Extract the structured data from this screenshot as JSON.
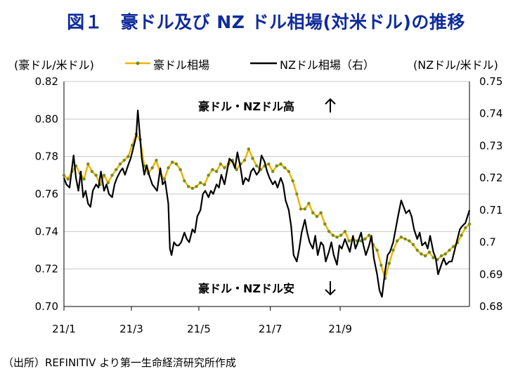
{
  "title": "図１　豪ドル及び NZ ドル相場(対米ドル)の推移",
  "left_unit": "(豪ドル/米ドル)",
  "right_unit": "(NZドル/米ドル)",
  "legend": {
    "aud": "豪ドル相場",
    "nzd": "NZドル相場（右）"
  },
  "source": "（出所）REFINITIV より第一生命経済研究所作成",
  "annotations": {
    "high": "豪ドル・NZドル高",
    "low": "豪ドル・NZドル安"
  },
  "colors": {
    "aud": "#f2b400",
    "aud_marker": "#6b8e23",
    "nzd": "#000000",
    "grid": "#c8c8c8",
    "title": "#0f2b9c"
  },
  "chart_data": {
    "type": "line",
    "x_tick_labels": [
      "21/1",
      "21/3",
      "21/5",
      "21/7",
      "21/9"
    ],
    "x_tick_weeks": [
      0,
      8.4,
      16.8,
      25.7,
      34.4
    ],
    "left_axis": {
      "ylim": [
        0.7,
        0.82
      ],
      "ticks": [
        "0.70",
        "0.72",
        "0.74",
        "0.76",
        "0.78",
        "0.80",
        "0.82"
      ]
    },
    "right_axis": {
      "ylim": [
        0.68,
        0.75
      ],
      "ticks": [
        "0.68",
        "0.69",
        "0.7",
        "0.71",
        "0.72",
        "0.73",
        "0.74",
        "0.75"
      ]
    },
    "grid": "horizontal",
    "series": [
      {
        "name": "豪ドル相場",
        "axis": "left",
        "markers": true,
        "points": [
          [
            0,
            0.77
          ],
          [
            0.5,
            0.768
          ],
          [
            1,
            0.772
          ],
          [
            1.5,
            0.775
          ],
          [
            2,
            0.771
          ],
          [
            2.5,
            0.768
          ],
          [
            3,
            0.776
          ],
          [
            3.5,
            0.772
          ],
          [
            4,
            0.77
          ],
          [
            4.5,
            0.765
          ],
          [
            5,
            0.77
          ],
          [
            5.5,
            0.766
          ],
          [
            6,
            0.77
          ],
          [
            6.5,
            0.773
          ],
          [
            7,
            0.776
          ],
          [
            7.5,
            0.778
          ],
          [
            8,
            0.78
          ],
          [
            8.5,
            0.786
          ],
          [
            9,
            0.792
          ],
          [
            9.5,
            0.789
          ],
          [
            10,
            0.775
          ],
          [
            10.5,
            0.771
          ],
          [
            11,
            0.774
          ],
          [
            11.5,
            0.778
          ],
          [
            12,
            0.771
          ],
          [
            12.5,
            0.768
          ],
          [
            13,
            0.774
          ],
          [
            13.5,
            0.777
          ],
          [
            14,
            0.776
          ],
          [
            14.5,
            0.773
          ],
          [
            15,
            0.767
          ],
          [
            15.5,
            0.764
          ],
          [
            16,
            0.763
          ],
          [
            16.5,
            0.764
          ],
          [
            17,
            0.766
          ],
          [
            17.5,
            0.765
          ],
          [
            18,
            0.77
          ],
          [
            18.5,
            0.773
          ],
          [
            19,
            0.772
          ],
          [
            19.5,
            0.776
          ],
          [
            20,
            0.774
          ],
          [
            20.5,
            0.776
          ],
          [
            21,
            0.778
          ],
          [
            21.5,
            0.773
          ],
          [
            22,
            0.776
          ],
          [
            22.5,
            0.778
          ],
          [
            23,
            0.784
          ],
          [
            23.5,
            0.779
          ],
          [
            24,
            0.775
          ],
          [
            24.5,
            0.773
          ],
          [
            25,
            0.775
          ],
          [
            25.5,
            0.776
          ],
          [
            26,
            0.772
          ],
          [
            26.5,
            0.775
          ],
          [
            27,
            0.776
          ],
          [
            27.5,
            0.774
          ],
          [
            28,
            0.772
          ],
          [
            28.5,
            0.767
          ],
          [
            29,
            0.76
          ],
          [
            29.5,
            0.752
          ],
          [
            30,
            0.752
          ],
          [
            30.5,
            0.755
          ],
          [
            31,
            0.75
          ],
          [
            31.5,
            0.748
          ],
          [
            32,
            0.75
          ],
          [
            32.5,
            0.744
          ],
          [
            33,
            0.74
          ],
          [
            33.5,
            0.738
          ],
          [
            34,
            0.737
          ],
          [
            34.5,
            0.738
          ],
          [
            35,
            0.74
          ],
          [
            35.5,
            0.735
          ],
          [
            36,
            0.736
          ],
          [
            36.5,
            0.735
          ],
          [
            37,
            0.735
          ],
          [
            37.5,
            0.736
          ],
          [
            38,
            0.738
          ],
          [
            38.5,
            0.733
          ],
          [
            39,
            0.73
          ],
          [
            39.5,
            0.722
          ],
          [
            40,
            0.715
          ],
          [
            40.5,
            0.723
          ],
          [
            41,
            0.73
          ],
          [
            41.5,
            0.735
          ],
          [
            42,
            0.737
          ],
          [
            42.5,
            0.736
          ],
          [
            43,
            0.735
          ],
          [
            43.5,
            0.733
          ],
          [
            44,
            0.73
          ],
          [
            44.5,
            0.728
          ],
          [
            45,
            0.727
          ],
          [
            45.5,
            0.729
          ],
          [
            46,
            0.726
          ],
          [
            46.5,
            0.725
          ],
          [
            47,
            0.727
          ],
          [
            47.5,
            0.728
          ],
          [
            48,
            0.73
          ],
          [
            48.5,
            0.732
          ],
          [
            49,
            0.734
          ],
          [
            49.5,
            0.738
          ],
          [
            50,
            0.742
          ],
          [
            50.5,
            0.744
          ]
        ]
      },
      {
        "name": "NZドル相場（右）",
        "axis": "right",
        "markers": false,
        "points": [
          [
            0,
            0.72
          ],
          [
            0.3,
            0.718
          ],
          [
            0.7,
            0.717
          ],
          [
            1,
            0.723
          ],
          [
            1.2,
            0.727
          ],
          [
            1.5,
            0.72
          ],
          [
            1.8,
            0.716
          ],
          [
            2.1,
            0.722
          ],
          [
            2.4,
            0.714
          ],
          [
            2.7,
            0.716
          ],
          [
            3,
            0.712
          ],
          [
            3.3,
            0.711
          ],
          [
            3.6,
            0.716
          ],
          [
            4,
            0.718
          ],
          [
            4.3,
            0.717
          ],
          [
            4.6,
            0.722
          ],
          [
            5,
            0.716
          ],
          [
            5.3,
            0.718
          ],
          [
            5.6,
            0.715
          ],
          [
            6,
            0.714
          ],
          [
            6.3,
            0.718
          ],
          [
            6.6,
            0.72
          ],
          [
            7,
            0.722
          ],
          [
            7.3,
            0.723
          ],
          [
            7.6,
            0.721
          ],
          [
            8,
            0.724
          ],
          [
            8.3,
            0.726
          ],
          [
            8.6,
            0.729
          ],
          [
            9,
            0.733
          ],
          [
            9.2,
            0.741
          ],
          [
            9.4,
            0.735
          ],
          [
            9.7,
            0.726
          ],
          [
            10,
            0.721
          ],
          [
            10.3,
            0.724
          ],
          [
            10.6,
            0.721
          ],
          [
            11,
            0.718
          ],
          [
            11.3,
            0.717
          ],
          [
            11.6,
            0.716
          ],
          [
            12,
            0.723
          ],
          [
            12.3,
            0.718
          ],
          [
            12.6,
            0.719
          ],
          [
            13,
            0.712
          ],
          [
            13.2,
            0.698
          ],
          [
            13.4,
            0.696
          ],
          [
            13.7,
            0.7
          ],
          [
            14,
            0.699
          ],
          [
            14.3,
            0.699
          ],
          [
            14.6,
            0.7
          ],
          [
            15,
            0.703
          ],
          [
            15.3,
            0.701
          ],
          [
            15.6,
            0.7
          ],
          [
            16,
            0.704
          ],
          [
            16.3,
            0.703
          ],
          [
            16.6,
            0.708
          ],
          [
            17,
            0.71
          ],
          [
            17.3,
            0.715
          ],
          [
            17.6,
            0.716
          ],
          [
            18,
            0.714
          ],
          [
            18.3,
            0.716
          ],
          [
            18.6,
            0.715
          ],
          [
            19,
            0.718
          ],
          [
            19.3,
            0.717
          ],
          [
            19.6,
            0.721
          ],
          [
            20,
            0.718
          ],
          [
            20.3,
            0.722
          ],
          [
            20.6,
            0.726
          ],
          [
            21,
            0.725
          ],
          [
            21.3,
            0.723
          ],
          [
            21.6,
            0.728
          ],
          [
            22,
            0.723
          ],
          [
            22.3,
            0.718
          ],
          [
            22.6,
            0.72
          ],
          [
            23,
            0.719
          ],
          [
            23.3,
            0.722
          ],
          [
            23.6,
            0.723
          ],
          [
            24,
            0.721
          ],
          [
            24.3,
            0.722
          ],
          [
            24.6,
            0.727
          ],
          [
            25,
            0.725
          ],
          [
            25.3,
            0.722
          ],
          [
            25.6,
            0.72
          ],
          [
            26,
            0.718
          ],
          [
            26.3,
            0.719
          ],
          [
            26.6,
            0.717
          ],
          [
            27,
            0.72
          ],
          [
            27.3,
            0.718
          ],
          [
            27.6,
            0.713
          ],
          [
            28,
            0.71
          ],
          [
            28.3,
            0.705
          ],
          [
            28.6,
            0.696
          ],
          [
            29,
            0.694
          ],
          [
            29.3,
            0.698
          ],
          [
            29.6,
            0.703
          ],
          [
            30,
            0.707
          ],
          [
            30.3,
            0.703
          ],
          [
            30.6,
            0.7
          ],
          [
            31,
            0.698
          ],
          [
            31.3,
            0.702
          ],
          [
            31.6,
            0.696
          ],
          [
            32,
            0.7
          ],
          [
            32.3,
            0.699
          ],
          [
            32.6,
            0.694
          ],
          [
            33,
            0.697
          ],
          [
            33.3,
            0.7
          ],
          [
            33.6,
            0.696
          ],
          [
            34,
            0.693
          ],
          [
            34.3,
            0.699
          ],
          [
            34.6,
            0.698
          ],
          [
            35,
            0.701
          ],
          [
            35.3,
            0.699
          ],
          [
            35.6,
            0.697
          ],
          [
            36,
            0.702
          ],
          [
            36.3,
            0.698
          ],
          [
            36.6,
            0.7
          ],
          [
            37,
            0.703
          ],
          [
            37.3,
            0.699
          ],
          [
            37.6,
            0.696
          ],
          [
            38,
            0.699
          ],
          [
            38.3,
            0.702
          ],
          [
            38.6,
            0.695
          ],
          [
            39,
            0.69
          ],
          [
            39.3,
            0.685
          ],
          [
            39.6,
            0.683
          ],
          [
            40,
            0.691
          ],
          [
            40.3,
            0.696
          ],
          [
            40.6,
            0.697
          ],
          [
            41,
            0.7
          ],
          [
            41.3,
            0.704
          ],
          [
            41.6,
            0.708
          ],
          [
            42,
            0.713
          ],
          [
            42.3,
            0.711
          ],
          [
            42.6,
            0.709
          ],
          [
            43,
            0.71
          ],
          [
            43.3,
            0.708
          ],
          [
            43.6,
            0.704
          ],
          [
            44,
            0.701
          ],
          [
            44.3,
            0.703
          ],
          [
            44.6,
            0.699
          ],
          [
            45,
            0.7
          ],
          [
            45.3,
            0.698
          ],
          [
            45.6,
            0.702
          ],
          [
            46,
            0.697
          ],
          [
            46.3,
            0.695
          ],
          [
            46.6,
            0.69
          ],
          [
            47,
            0.693
          ],
          [
            47.3,
            0.695
          ],
          [
            47.6,
            0.693
          ],
          [
            48,
            0.694
          ],
          [
            48.3,
            0.694
          ],
          [
            48.6,
            0.697
          ],
          [
            49,
            0.701
          ],
          [
            49.3,
            0.704
          ],
          [
            49.6,
            0.705
          ],
          [
            50,
            0.706
          ],
          [
            50.5,
            0.71
          ]
        ]
      }
    ]
  }
}
